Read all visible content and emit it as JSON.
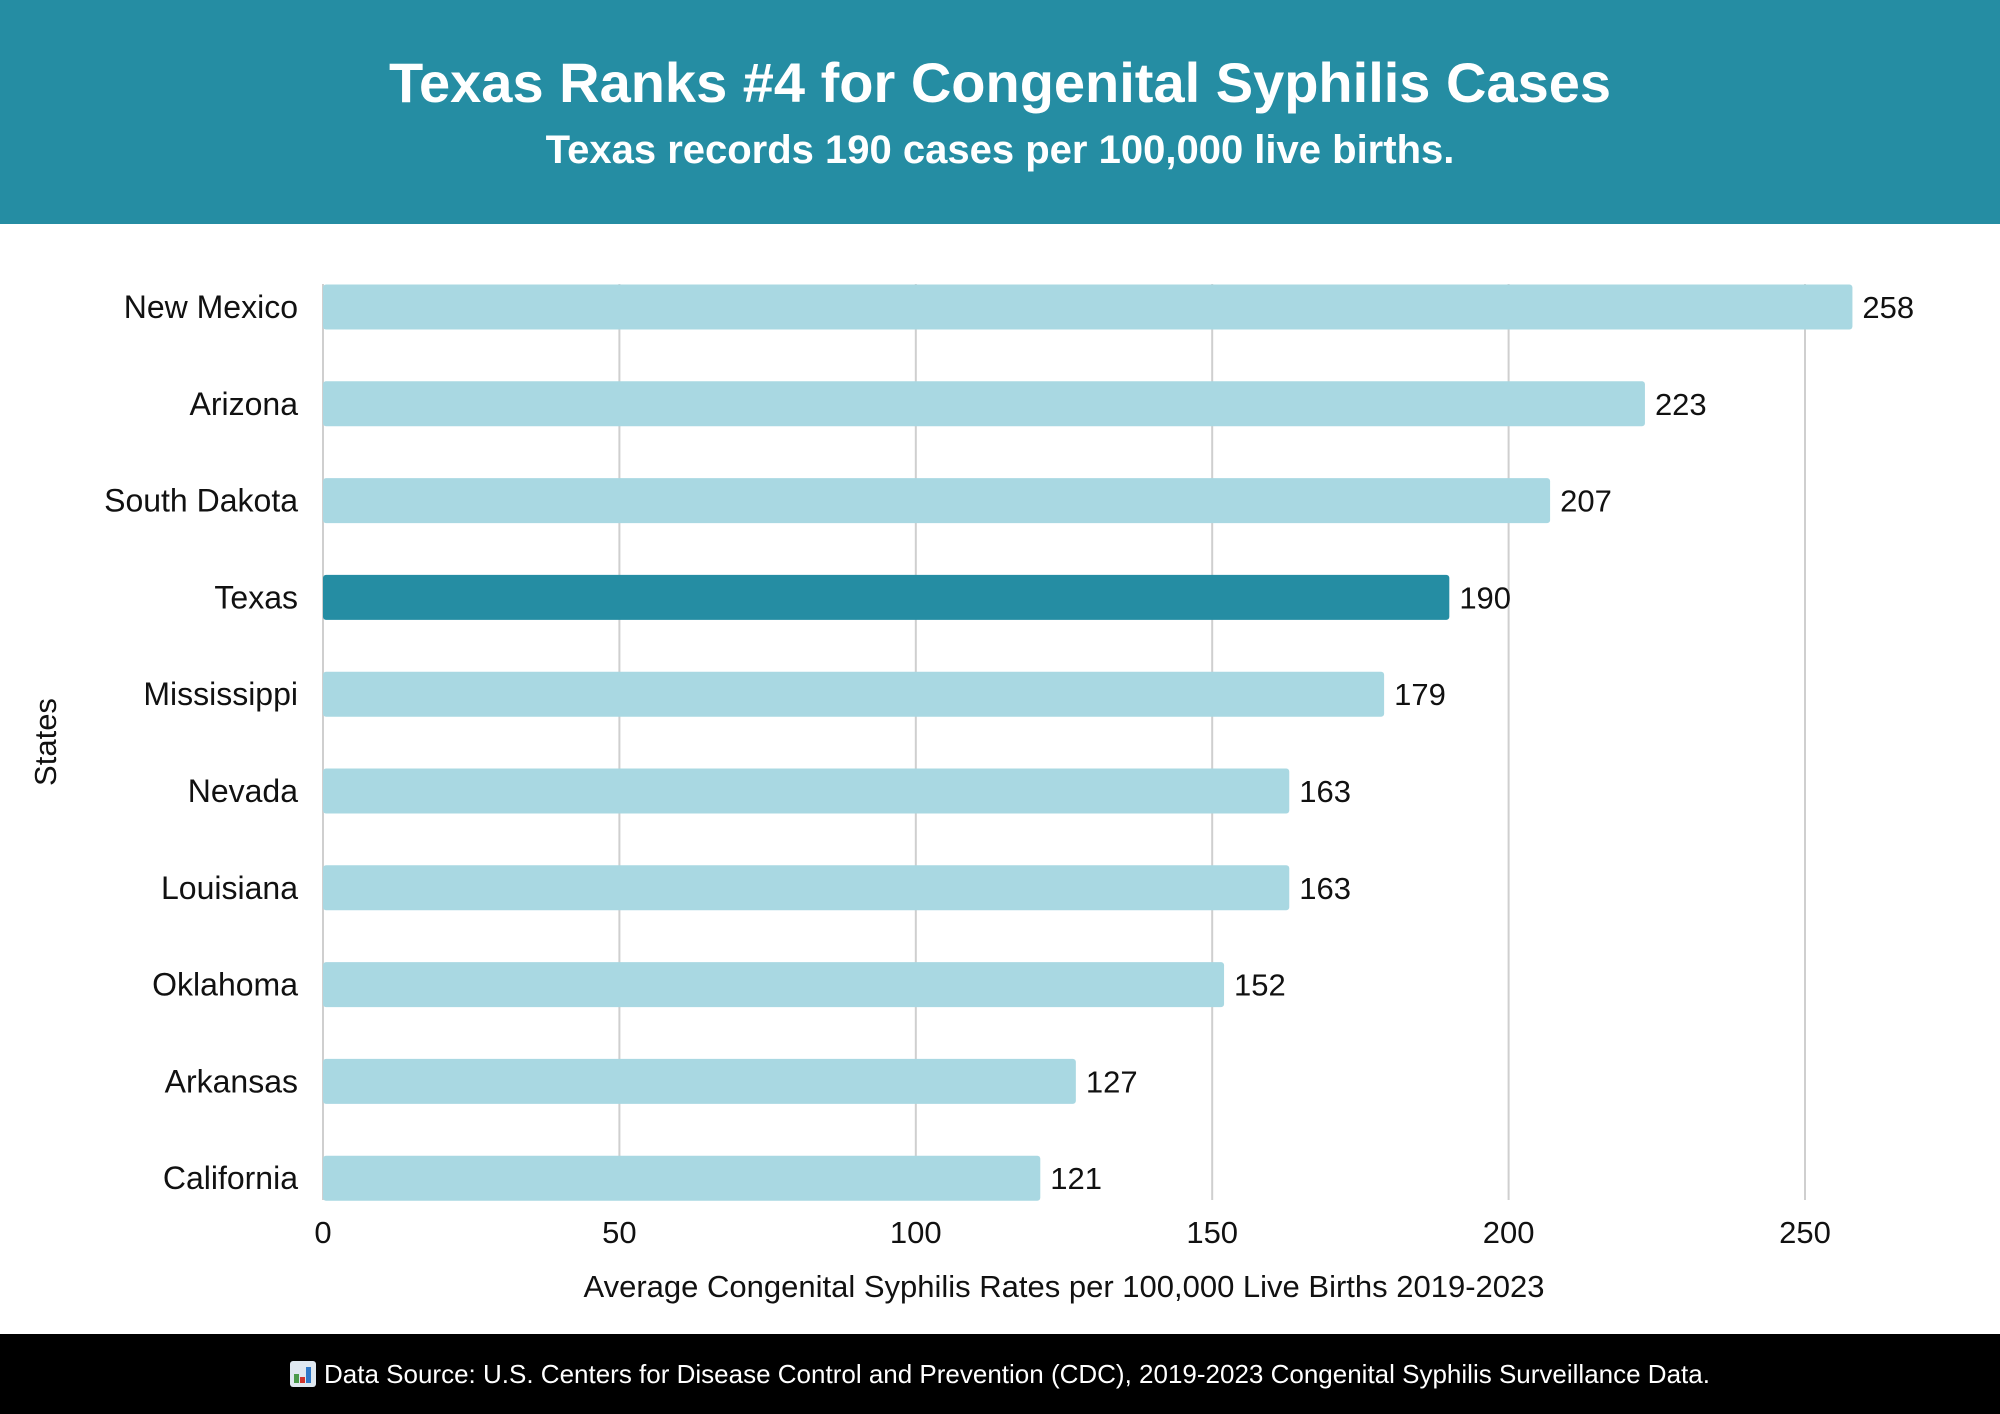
{
  "header": {
    "title": "Texas Ranks #4 for Congenital Syphilis Cases",
    "subtitle": "Texas records 190 cases per 100,000 live births."
  },
  "footer": {
    "icon": "bar-chart-icon",
    "source": "Data Source: U.S. Centers for Disease Control and Prevention (CDC), 2019-2023 Congenital Syphilis Surveillance Data."
  },
  "colors": {
    "header": "#258da3",
    "bar": "#a9d8e2",
    "highlight": "#258da3",
    "footer": "#000000"
  },
  "chart_data": {
    "type": "bar",
    "orientation": "horizontal",
    "categories": [
      "New Mexico",
      "Arizona",
      "South Dakota",
      "Texas",
      "Mississippi",
      "Nevada",
      "Louisiana",
      "Oklahoma",
      "Arkansas",
      "California"
    ],
    "values": [
      258,
      223,
      207,
      190,
      179,
      163,
      163,
      152,
      127,
      121
    ],
    "highlight": "Texas",
    "xlabel": "Average Congenital Syphilis Rates per 100,000 Live Births 2019-2023",
    "ylabel": "States",
    "xlim": [
      0,
      250
    ],
    "xticks": [
      0,
      50,
      100,
      150,
      200,
      250
    ],
    "grid": "vertical"
  }
}
